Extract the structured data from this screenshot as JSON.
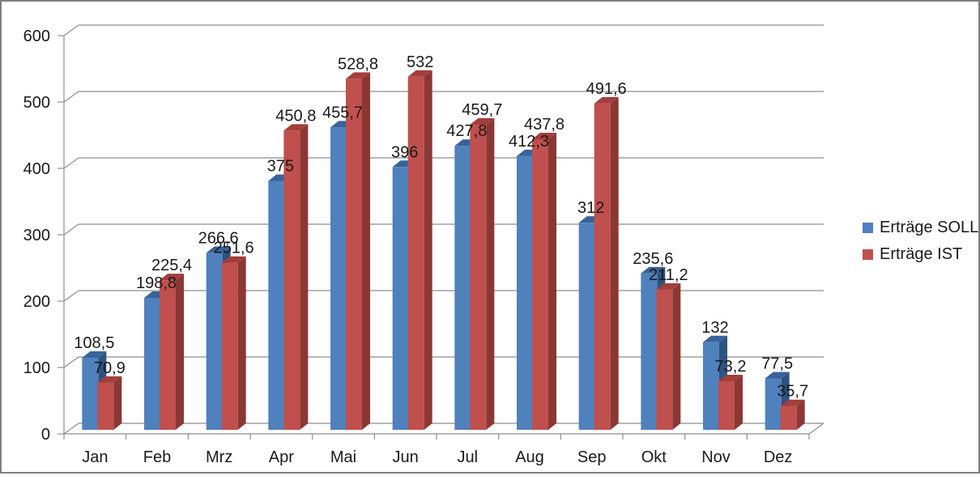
{
  "window": {
    "background_color": "#ffffff",
    "frame_border_color": "#7f7f7f"
  },
  "chart_data": {
    "type": "bar",
    "subtype": "3d-clustered-column",
    "title": "",
    "categories": [
      "Jan",
      "Feb",
      "Mrz",
      "Apr",
      "Mai",
      "Jun",
      "Jul",
      "Aug",
      "Sep",
      "Okt",
      "Nov",
      "Dez"
    ],
    "series": [
      {
        "name": "Erträge SOLL",
        "color": "#4F81BD",
        "top_color": "#38639A",
        "side_color": "#2E5380",
        "values": [
          108.5,
          198.8,
          266.6,
          375,
          455.7,
          396,
          427.8,
          412.3,
          312,
          235.6,
          132,
          77.5
        ],
        "labels": [
          "108,5",
          "198,8",
          "266,6",
          "375",
          "455,7",
          "396",
          "427,8",
          "412,3",
          "312",
          "235,6",
          "132",
          "77,5"
        ]
      },
      {
        "name": "Erträge IST",
        "color": "#C0504D",
        "top_color": "#A33E3B",
        "side_color": "#8B3734",
        "values": [
          70.9,
          225.4,
          251.6,
          450.8,
          528.8,
          532,
          459.7,
          437.8,
          491.6,
          211.2,
          73.2,
          35.7
        ],
        "labels": [
          "70,9",
          "225,4",
          "251,6",
          "450,8",
          "528,8",
          "532",
          "459,7",
          "437,8",
          "491,6",
          "211,2",
          "73,2",
          "35,7"
        ]
      }
    ],
    "y_axis": {
      "min": 0,
      "max": 600,
      "step": 100,
      "tick_labels": [
        "0",
        "100",
        "200",
        "300",
        "400",
        "500",
        "600"
      ]
    },
    "x_axis": {
      "tick_labels": [
        "Jan",
        "Feb",
        "Mrz",
        "Apr",
        "Mai",
        "Jun",
        "Jul",
        "Aug",
        "Sep",
        "Okt",
        "Nov",
        "Dez"
      ]
    },
    "legend": {
      "position": "right",
      "entries": [
        "Erträge SOLL",
        "Erträge IST"
      ]
    },
    "grid": true,
    "axis_color": "#8E8E8E",
    "label_color": "#1a1a1a",
    "data_label_font_size": 20,
    "axis_label_font_size": 20
  }
}
